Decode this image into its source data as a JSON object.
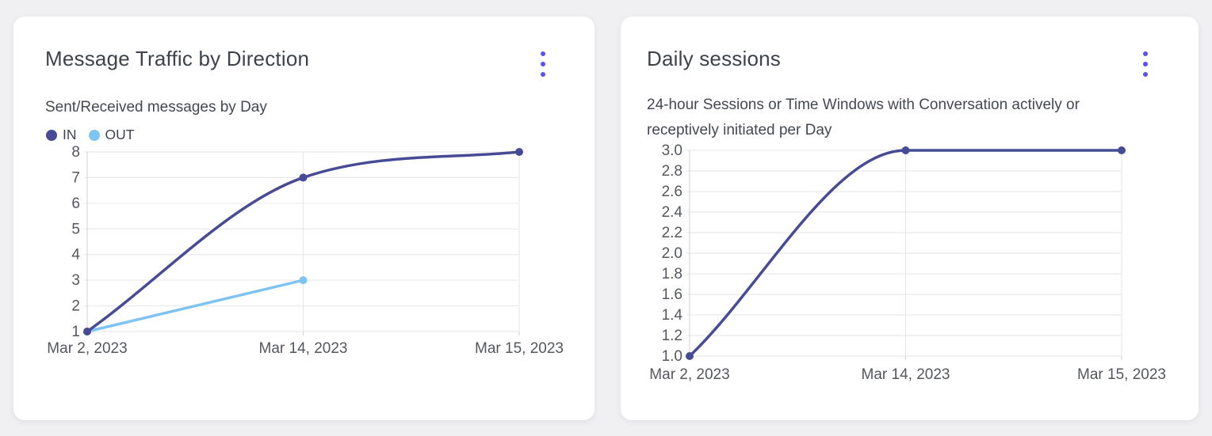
{
  "page": {
    "background": "#f0f0f3",
    "card_background": "#ffffff"
  },
  "accent": {
    "menu_dots": "#5951f2"
  },
  "cards": [
    {
      "menu_icon": "kebab-menu"
    },
    {
      "menu_icon": "kebab-menu"
    }
  ],
  "chart_data": [
    {
      "type": "line",
      "title": "Message Traffic by Direction",
      "subtitle": "Sent/Received messages by Day",
      "categories": [
        "Mar 2, 2023",
        "Mar 14, 2023",
        "Mar 15, 2023"
      ],
      "series": [
        {
          "name": "IN",
          "color": "#464b96",
          "values": [
            1,
            7,
            8
          ]
        },
        {
          "name": "OUT",
          "color": "#7dc4f2",
          "values": [
            1,
            3,
            null
          ]
        }
      ],
      "y_ticks": [
        "8",
        "7",
        "6",
        "5",
        "4",
        "3",
        "2",
        "1"
      ],
      "ylim": [
        1,
        8
      ],
      "grid": true,
      "legend_position": "top-left",
      "curve": "monotone"
    },
    {
      "type": "line",
      "title": "Daily sessions",
      "subtitle": "24-hour Sessions or Time Windows with Conversation actively or receptively initiated per Day",
      "categories": [
        "Mar 2, 2023",
        "Mar 14, 2023",
        "Mar 15, 2023"
      ],
      "series": [
        {
          "name": "Daily sessions",
          "color": "#464b96",
          "values": [
            1.0,
            3.0,
            3.0
          ]
        }
      ],
      "y_ticks": [
        "3.0",
        "2.8",
        "2.6",
        "2.4",
        "2.2",
        "2.0",
        "1.8",
        "1.6",
        "1.4",
        "1.2",
        "1.0"
      ],
      "ylim": [
        1,
        3
      ],
      "grid": true,
      "legend_position": "none",
      "curve": "monotone"
    }
  ]
}
